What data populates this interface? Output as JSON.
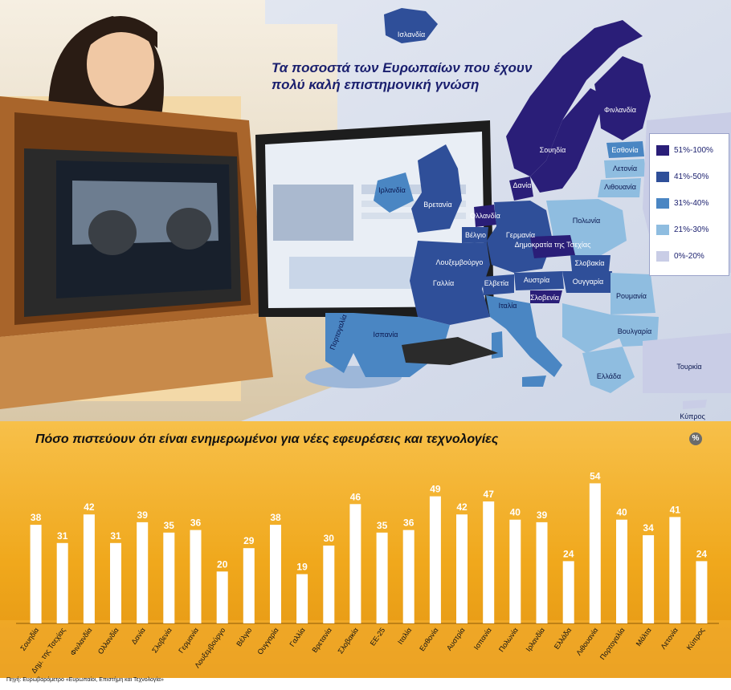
{
  "map": {
    "title": "Τα ποσοστά των Ευρωπαίων που έχουν πολύ καλή επιστημονική γνώση",
    "legend": [
      {
        "label": "51%-100%",
        "color": "#2a1e78"
      },
      {
        "label": "41%-50%",
        "color": "#2f4f99"
      },
      {
        "label": "31%-40%",
        "color": "#4a86c3"
      },
      {
        "label": "21%-30%",
        "color": "#8fbde0"
      },
      {
        "label": "0%-20%",
        "color": "#c9cde6"
      }
    ],
    "countries": [
      {
        "key": "islandia",
        "label": "Ισλανδία",
        "category": "51%-100%"
      },
      {
        "key": "finlandia",
        "label": "Φινλανδία",
        "category": "51%-100%"
      },
      {
        "key": "soudia",
        "label": "Σουηδία",
        "category": "51%-100%"
      },
      {
        "key": "dania",
        "label": "Δανία",
        "category": "51%-100%"
      },
      {
        "key": "ollandia",
        "label": "Ολλανδία",
        "category": "51%-100%"
      },
      {
        "key": "tsechia",
        "label": "Δημοκρατία της Τσεχίας",
        "category": "51%-100%"
      },
      {
        "key": "slovenia",
        "label": "Σλοβενία",
        "category": "51%-100%"
      },
      {
        "key": "esthonia",
        "label": "Εσθονία",
        "category": "31%-40%"
      },
      {
        "key": "latvia",
        "label": "Λετονία",
        "category": "21%-30%"
      },
      {
        "key": "lithouania",
        "label": "Λιθουανία",
        "category": "21%-30%"
      },
      {
        "key": "irlandia",
        "label": "Ιρλανδία",
        "category": "31%-40%"
      },
      {
        "key": "vretania",
        "label": "Βρετανία",
        "category": "41%-50%"
      },
      {
        "key": "velgio",
        "label": "Βέλγιο",
        "category": "41%-50%"
      },
      {
        "key": "germania",
        "label": "Γερμανία",
        "category": "41%-50%"
      },
      {
        "key": "polonia",
        "label": "Πολωνία",
        "category": "21%-30%"
      },
      {
        "key": "louxemvourgo",
        "label": "Λουξεμβούργο",
        "category": "41%-50%"
      },
      {
        "key": "gallia",
        "label": "Γαλλία",
        "category": "41%-50%"
      },
      {
        "key": "elvetia",
        "label": "Ελβετία",
        "category": "41%-50%"
      },
      {
        "key": "afstria",
        "label": "Αυστρία",
        "category": "41%-50%"
      },
      {
        "key": "slovakia",
        "label": "Σλοβακία",
        "category": "41%-50%"
      },
      {
        "key": "oungaria",
        "label": "Ουγγαρία",
        "category": "41%-50%"
      },
      {
        "key": "roumania",
        "label": "Ρουμανία",
        "category": "21%-30%"
      },
      {
        "key": "portogalia",
        "label": "Πορτογαλία",
        "category": "31%-40%"
      },
      {
        "key": "ispania",
        "label": "Ισπανία",
        "category": "31%-40%"
      },
      {
        "key": "italia",
        "label": "Ιταλία",
        "category": "31%-40%"
      },
      {
        "key": "voulgaria",
        "label": "Βουλγαρία",
        "category": "21%-30%"
      },
      {
        "key": "ellada",
        "label": "Ελλάδα",
        "category": "21%-30%"
      },
      {
        "key": "tourkia",
        "label": "Τουρκία",
        "category": "0%-20%"
      },
      {
        "key": "kypros",
        "label": "Κύπρος",
        "category": "0%-20%"
      }
    ]
  },
  "chart_data": {
    "type": "bar",
    "title": "Πόσο πιστεύουν ότι είναι ενημερωμένοι για νέες εφευρέσεις και τεχνολογίες",
    "unit": "%",
    "categories": [
      "Σουηδία",
      "Δημ. της Τσεχίας",
      "Φινλανδία",
      "Ολλανδία",
      "Δανία",
      "Σλοβενία",
      "Γερμανία",
      "Λουξεμβούργο",
      "Βέλγιο",
      "Ουγγαρία",
      "Γαλλία",
      "Βρετανία",
      "Σλοβακία",
      "ΕΕ-25",
      "Ιταλία",
      "Εσθονία",
      "Αυστρία",
      "Ισπανία",
      "Πολωνία",
      "Ιρλανδία",
      "Ελλάδα",
      "Λιθουανία",
      "Πορτογαλία",
      "Μάλτα",
      "Λετονία",
      "Κύπρος"
    ],
    "values": [
      38,
      31,
      42,
      31,
      39,
      35,
      36,
      20,
      29,
      38,
      19,
      30,
      46,
      35,
      36,
      49,
      42,
      47,
      40,
      39,
      24,
      54,
      40,
      34,
      41,
      24
    ],
    "ylim": [
      0,
      60
    ],
    "bar_color": "#ffffff",
    "background_color": "#f0a81c"
  },
  "source": "Πηγή: Ευρωβαρόμετρο «Ευρωπαίοι, Επιστήμη και Τεχνολογία»"
}
